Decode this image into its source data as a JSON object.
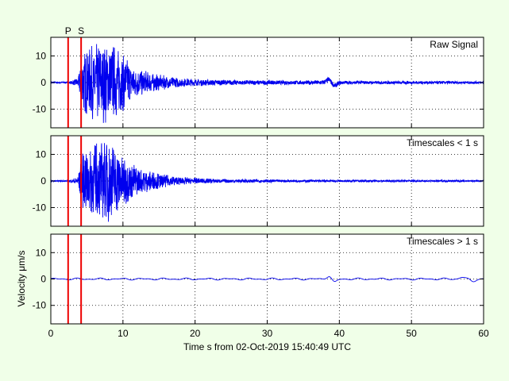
{
  "figure": {
    "background": "#f0ffe8"
  },
  "colors": {
    "signal": "#0000ee",
    "pick": "#ee0000",
    "axes": "#000000",
    "grid": "#000000"
  },
  "picks": [
    {
      "label": "P",
      "time": 2.4
    },
    {
      "label": "S",
      "time": 4.2
    }
  ],
  "chart_data": [
    {
      "type": "line",
      "title": "Raw Signal",
      "xlim": [
        0,
        60
      ],
      "ylim": [
        -17,
        17
      ],
      "x_ticks": [
        0,
        10,
        20,
        30,
        40,
        50,
        60
      ],
      "y_ticks": [
        -10,
        0,
        10
      ],
      "grid": true,
      "envelope": {
        "time": [
          0,
          2.4,
          3.0,
          3.8,
          4.2,
          5,
          6,
          7,
          8,
          9,
          10,
          11,
          12,
          14,
          16,
          18,
          20,
          22,
          25,
          30,
          35,
          37.5,
          38.5,
          40,
          45,
          50,
          55,
          60
        ],
        "amplitude": [
          0.35,
          0.4,
          0.8,
          2.0,
          9.5,
          13.0,
          14.5,
          15.5,
          16.0,
          14.0,
          11.0,
          7.5,
          5.5,
          3.8,
          2.6,
          1.8,
          1.4,
          1.2,
          1.0,
          0.9,
          0.8,
          1.0,
          1.1,
          0.8,
          0.6,
          0.6,
          0.6,
          0.5
        ]
      },
      "slow_features": [
        {
          "time": 38.6,
          "amplitude": 1.2
        },
        {
          "time": 39.3,
          "amplitude": -1.3
        }
      ]
    },
    {
      "type": "line",
      "title": "Timescales < 1 s",
      "xlim": [
        0,
        60
      ],
      "ylim": [
        -17,
        17
      ],
      "x_ticks": [
        0,
        10,
        20,
        30,
        40,
        50,
        60
      ],
      "y_ticks": [
        -10,
        0,
        10
      ],
      "grid": true,
      "envelope": {
        "time": [
          0,
          2.4,
          3.0,
          3.8,
          4.2,
          5,
          6,
          7,
          8,
          9,
          10,
          11,
          12,
          14,
          16,
          18,
          20,
          22,
          25,
          30,
          35,
          40,
          45,
          50,
          55,
          60
        ],
        "amplitude": [
          0.25,
          0.3,
          0.7,
          2.0,
          9.5,
          13.0,
          14.5,
          15.5,
          16.0,
          14.0,
          11.0,
          7.5,
          5.5,
          3.8,
          2.4,
          1.6,
          1.2,
          0.9,
          0.7,
          0.6,
          0.5,
          0.5,
          0.4,
          0.4,
          0.4,
          0.3
        ]
      }
    },
    {
      "type": "line",
      "title": "Timescales > 1 s",
      "xlim": [
        0,
        60
      ],
      "ylim": [
        -17,
        17
      ],
      "x_ticks": [
        0,
        10,
        20,
        30,
        40,
        50,
        60
      ],
      "y_ticks": [
        -10,
        0,
        10
      ],
      "grid": true,
      "ylabel": "Velocity μm/s",
      "xlabel": "Time s from 02-Oct-2019 15:40:49 UTC",
      "wave_amplitude": 0.4,
      "slow_features": [
        {
          "time": 38.6,
          "amplitude": 1.3
        },
        {
          "time": 39.3,
          "amplitude": -1.4
        },
        {
          "time": 57.0,
          "amplitude": 0.7
        },
        {
          "time": 58.5,
          "amplitude": -0.8
        }
      ]
    }
  ]
}
